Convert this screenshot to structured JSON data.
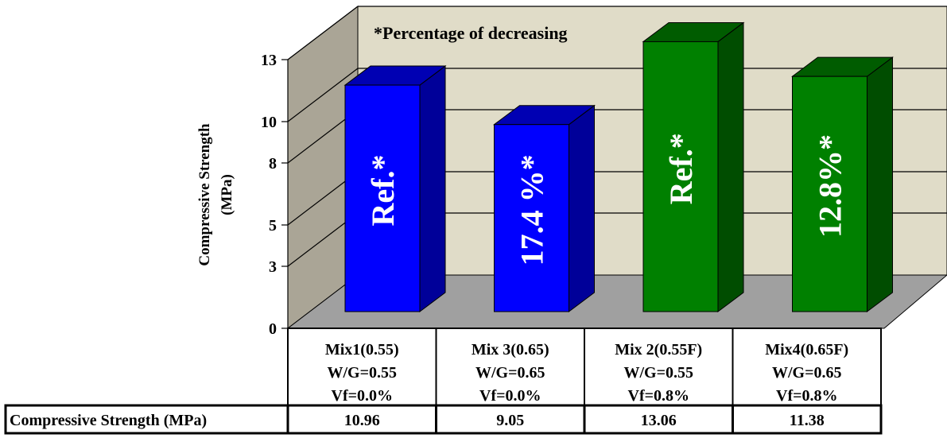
{
  "chart_data": {
    "type": "bar",
    "annotation": "*Percentage of decreasing",
    "ylabel_line1": "Compressive Strength",
    "ylabel_line2": "(MPa)",
    "ylim": [
      0,
      13
    ],
    "yticks": [
      "0",
      "3",
      "5",
      "8",
      "10",
      "13"
    ],
    "categories": [
      {
        "lines": [
          "Mix1(0.55)",
          "W/G=0.55",
          "Vf=0.0%"
        ]
      },
      {
        "lines": [
          "Mix 3(0.65)",
          "W/G=0.65",
          "Vf=0.0%"
        ]
      },
      {
        "lines": [
          "Mix 2(0.55F)",
          "W/G=0.55",
          "Vf=0.8%"
        ]
      },
      {
        "lines": [
          "Mix4(0.65F)",
          "W/G=0.65",
          "Vf=0.8%"
        ]
      }
    ],
    "values": [
      10.96,
      9.05,
      13.06,
      11.38
    ],
    "bar_labels": [
      "Ref.*",
      "17.4 %*",
      "Ref.*",
      "12.8%*"
    ],
    "bar_colors": [
      "#0000FF",
      "#0000FF",
      "#008000",
      "#008000"
    ],
    "bar_side_colors": [
      "#000099",
      "#000099",
      "#004d00",
      "#004d00"
    ],
    "bar_top_colors": [
      "#0000b3",
      "#0000b3",
      "#005c00",
      "#005c00"
    ],
    "table": {
      "row_header": "Compressive Strength (MPa)",
      "cells": [
        "10.96",
        "9.05",
        "13.06",
        "11.38"
      ]
    },
    "wall_color": "#e0dcc8",
    "side_wall_color": "#aaa596",
    "floor_color": "#a0a0a0",
    "grid": true
  }
}
